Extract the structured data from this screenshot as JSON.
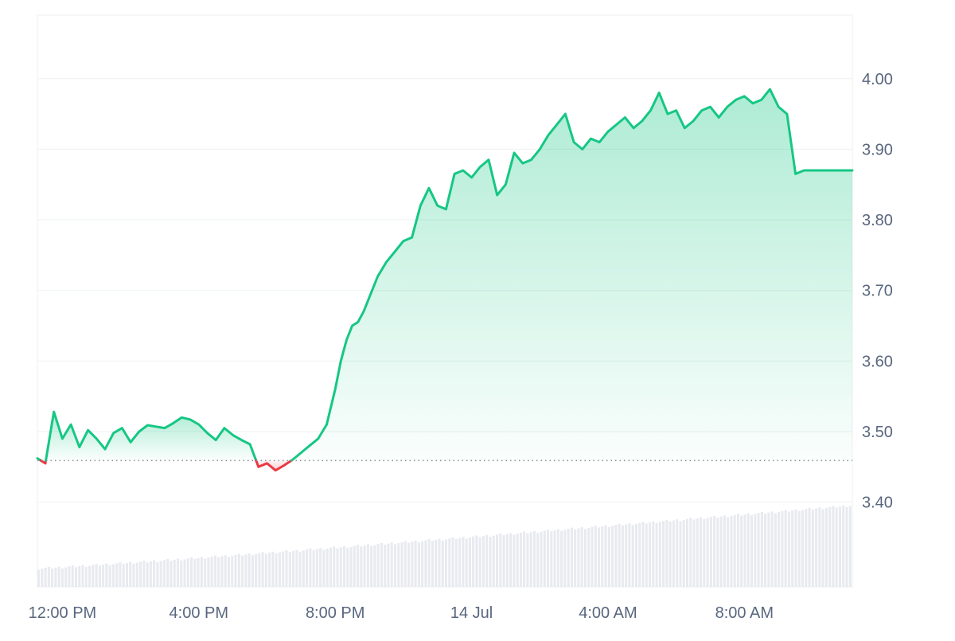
{
  "chart_data": {
    "type": "area",
    "title": "",
    "xlabel": "",
    "ylabel": "",
    "x_ticks": [
      "12:00 PM",
      "4:00 PM",
      "8:00 PM",
      "14 Jul",
      "4:00 AM",
      "8:00 AM"
    ],
    "y_ticks": [
      "3.40",
      "3.50",
      "3.60",
      "3.70",
      "3.80",
      "3.90",
      "4.00"
    ],
    "ylim": [
      3.28,
      4.09
    ],
    "baseline": 3.459,
    "grid": "horizontal",
    "series": [
      {
        "x": [
          "11:16",
          "11:30",
          "11:45",
          "12:00",
          "12:15",
          "12:30",
          "12:45",
          "13:00",
          "13:15",
          "13:30",
          "13:45",
          "14:00",
          "14:15",
          "14:30",
          "14:45",
          "15:00",
          "15:15",
          "15:30",
          "15:45",
          "16:00",
          "16:15",
          "16:30",
          "16:45",
          "17:00",
          "17:15",
          "17:30",
          "17:45",
          "18:00",
          "18:15",
          "18:30",
          "18:45",
          "19:00",
          "19:15",
          "19:30",
          "19:45",
          "20:00",
          "20:10",
          "20:20",
          "20:30",
          "20:40",
          "20:50",
          "21:00",
          "21:15",
          "21:30",
          "21:45",
          "22:00",
          "22:15",
          "22:30",
          "22:45",
          "23:00",
          "23:15",
          "23:30",
          "23:45",
          "00:00",
          "00:15",
          "00:30",
          "00:45",
          "01:00",
          "01:15",
          "01:30",
          "01:45",
          "02:00",
          "02:15",
          "02:30",
          "02:45",
          "03:00",
          "03:15",
          "03:30",
          "03:45",
          "04:00",
          "04:15",
          "04:30",
          "04:45",
          "05:00",
          "05:15",
          "05:30",
          "05:45",
          "06:00",
          "06:15",
          "06:30",
          "06:45",
          "07:00",
          "07:15",
          "07:30",
          "07:45",
          "08:00",
          "08:15",
          "08:30",
          "08:45",
          "09:00",
          "09:15",
          "09:30",
          "09:45",
          "10:00",
          "10:15",
          "10:30",
          "10:45",
          "11:00",
          "11:10"
        ],
        "values": [
          3.462,
          3.455,
          3.528,
          3.49,
          3.51,
          3.478,
          3.502,
          3.49,
          3.475,
          3.498,
          3.505,
          3.485,
          3.5,
          3.509,
          3.507,
          3.505,
          3.512,
          3.52,
          3.517,
          3.51,
          3.498,
          3.488,
          3.505,
          3.495,
          3.488,
          3.482,
          3.45,
          3.455,
          3.445,
          3.452,
          3.46,
          3.47,
          3.48,
          3.49,
          3.51,
          3.56,
          3.6,
          3.63,
          3.65,
          3.655,
          3.67,
          3.69,
          3.72,
          3.74,
          3.755,
          3.77,
          3.775,
          3.82,
          3.845,
          3.82,
          3.815,
          3.865,
          3.87,
          3.86,
          3.875,
          3.885,
          3.835,
          3.85,
          3.895,
          3.88,
          3.885,
          3.9,
          3.92,
          3.935,
          3.95,
          3.91,
          3.9,
          3.915,
          3.91,
          3.925,
          3.935,
          3.945,
          3.93,
          3.94,
          3.955,
          3.98,
          3.95,
          3.955,
          3.93,
          3.94,
          3.955,
          3.96,
          3.945,
          3.96,
          3.97,
          3.975,
          3.965,
          3.97,
          3.985,
          3.96,
          3.95,
          3.865,
          3.87,
          3.87,
          3.87,
          3.87,
          3.87,
          3.87,
          3.87
        ],
        "color_up": "#16c784",
        "color_down": "#ea3943"
      }
    ],
    "volume": {
      "min_fraction": 0.03,
      "max_fraction": 0.14,
      "color": "#e8eaf0"
    }
  }
}
